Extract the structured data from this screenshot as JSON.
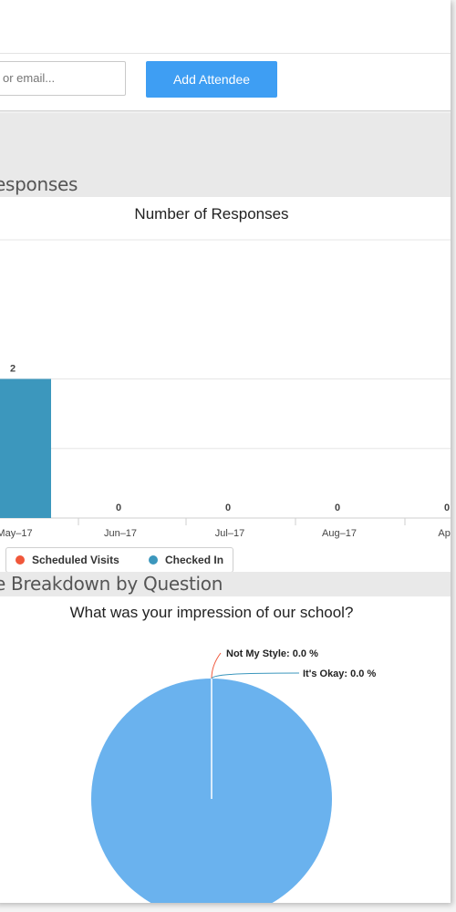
{
  "attendee": {
    "search_placeholder": "or email...",
    "add_button": "Add Attendee"
  },
  "responses_section": {
    "heading": "esponses"
  },
  "chart_data": [
    {
      "type": "bar",
      "title": "Number of Responses",
      "categories": [
        "May–17",
        "Jun–17",
        "Jul–17",
        "Aug–17",
        "Apr–"
      ],
      "series": [
        {
          "name": "Scheduled Visits",
          "color": "#f0573a",
          "values": [
            0,
            0,
            0,
            0,
            0
          ]
        },
        {
          "name": "Checked In",
          "color": "#3c97bd",
          "values": [
            2,
            0,
            0,
            0,
            0
          ]
        }
      ],
      "data_labels": [
        "2",
        "0",
        "0",
        "0",
        "0"
      ],
      "ylim": [
        0,
        4
      ],
      "grid": true,
      "legend": "bottom"
    },
    {
      "type": "pie",
      "title": "What was your impression of our school?",
      "slices": [
        {
          "label": "Not My Style: 0.0 %",
          "value": 0.0,
          "color": "#f0573a"
        },
        {
          "label": "It's Okay: 0.0 %",
          "value": 0.0,
          "color": "#3c97bd"
        },
        {
          "label": "",
          "value": 100.0,
          "color": "#6ab2ee"
        }
      ]
    }
  ],
  "breakdown_section": {
    "heading": "e Breakdown by Question"
  },
  "colors": {
    "accent": "#3e9ef3",
    "bar": "#3c97bd",
    "pie": "#6ab2ee",
    "band": "#e9e9e9"
  }
}
